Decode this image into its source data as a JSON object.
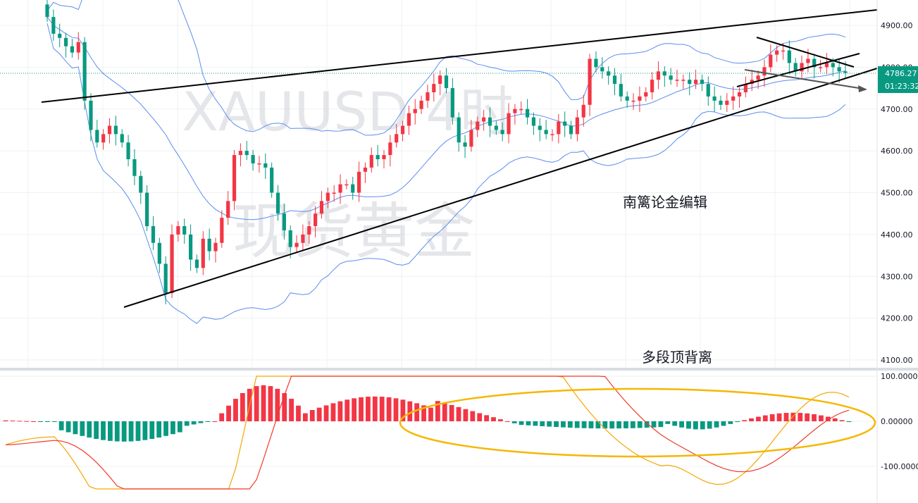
{
  "watermark": {
    "symbol": "XAUUSD 4时",
    "brand": "现货黄金"
  },
  "annotations": {
    "editor": "南篱论金编辑",
    "divergence": "多段顶背离"
  },
  "price_badge": {
    "price": "4786.27",
    "countdown": "01:23:32"
  },
  "colors": {
    "up": "#f23645",
    "down": "#089981",
    "band": "#5b8def",
    "trend": "#000000",
    "dif": "#f7a600",
    "dea": "#ef3b2c",
    "ellipse": "#f5b700",
    "grid": "#eef0f3"
  },
  "chart_data": [
    {
      "type": "candlestick",
      "title": "XAUUSD 4时",
      "ylim": [
        4100,
        4950
      ],
      "y_ticks": [
        "4900.00",
        "4800.00",
        "4700.00",
        "4600.00",
        "4500.00",
        "4400.00",
        "4300.00",
        "4200.00",
        "4100.00"
      ],
      "y_tick_values": [
        4900,
        4800,
        4700,
        4600,
        4500,
        4400,
        4300,
        4200,
        4100
      ],
      "last_price": 4786.27,
      "overlays": [
        "Bollinger Bands",
        "ascending trendlines",
        "descending triangle"
      ],
      "close": [
        4920,
        4880,
        4870,
        4850,
        4835,
        4860,
        4720,
        4650,
        4620,
        4640,
        4660,
        4640,
        4620,
        4580,
        4540,
        4500,
        4420,
        4380,
        4330,
        4260,
        4400,
        4420,
        4400,
        4340,
        4320,
        4390,
        4360,
        4380,
        4440,
        4480,
        4590,
        4600,
        4590,
        4570,
        4570,
        4560,
        4500,
        4450,
        4410,
        4370,
        4380,
        4400,
        4420,
        4450,
        4480,
        4500,
        4500,
        4520,
        4520,
        4500,
        4550,
        4560,
        4590,
        4580,
        4590,
        4620,
        4640,
        4660,
        4690,
        4700,
        4720,
        4740,
        4760,
        4780,
        4750,
        4680,
        4620,
        4610,
        4650,
        4670,
        4680,
        4660,
        4650,
        4640,
        4690,
        4700,
        4700,
        4680,
        4660,
        4650,
        4640,
        4640,
        4670,
        4660,
        4640,
        4680,
        4710,
        4820,
        4800,
        4790,
        4780,
        4760,
        4730,
        4720,
        4720,
        4730,
        4740,
        4770,
        4790,
        4780,
        4770,
        4770,
        4770,
        4760,
        4770,
        4760,
        4730,
        4720,
        4710,
        4720,
        4730,
        4740,
        4760,
        4770,
        4780,
        4800,
        4830,
        4840,
        4840,
        4810,
        4790,
        4810,
        4820,
        4800,
        4800,
        4810,
        4800,
        4790,
        4786.27
      ],
      "macd": {
        "levels": [
          "100.00000",
          "0.00000",
          "-100.00000"
        ],
        "histogram_shape": "negative early, positive peak mid-left, positive plateau, then small alternating bars near zero",
        "legend_note": "多段顶背离"
      }
    }
  ]
}
